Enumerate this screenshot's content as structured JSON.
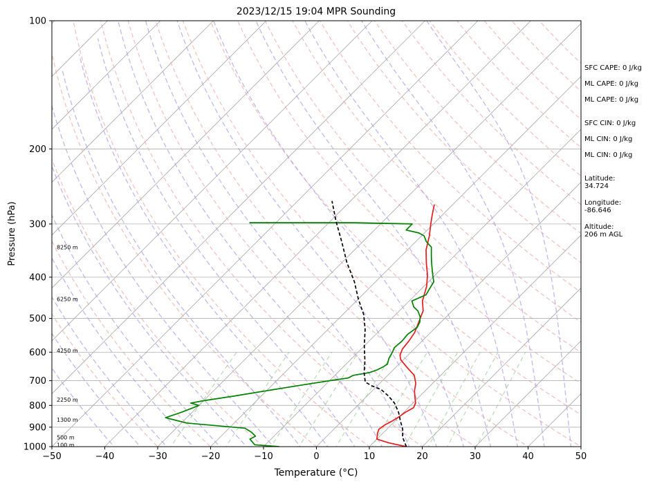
{
  "title": "2023/12/15 19:04 MPR Sounding",
  "chart_data": {
    "type": "line",
    "title": "2023/12/15 19:04 MPR Sounding",
    "xlabel": "Temperature (°C)",
    "ylabel": "Pressure (hPa)",
    "xlim": [
      -50,
      50
    ],
    "ylim": [
      1000,
      100
    ],
    "y_scale": "log",
    "x_ticks": [
      -50,
      -40,
      -30,
      -20,
      -10,
      0,
      10,
      20,
      30,
      40,
      50
    ],
    "y_ticks": [
      100,
      200,
      300,
      400,
      500,
      600,
      700,
      800,
      900,
      1000
    ],
    "grid": true,
    "background_lines": {
      "dry_adiabats": true,
      "moist_adiabats": true,
      "mixing_ratio": true,
      "isotherms": true
    },
    "height_labels": [
      {
        "label": "100 m",
        "pressure": 990
      },
      {
        "label": "500 m",
        "pressure": 950
      },
      {
        "label": "1300 m",
        "pressure": 865
      },
      {
        "label": "2250 m",
        "pressure": 775
      },
      {
        "label": "4250 m",
        "pressure": 595
      },
      {
        "label": "6250 m",
        "pressure": 450
      },
      {
        "label": "8250 m",
        "pressure": 340
      }
    ],
    "series": [
      {
        "color": "#e41a1c",
        "points": [
          [
            17,
            1000
          ],
          [
            13,
            980
          ],
          [
            10,
            960
          ],
          [
            9,
            930
          ],
          [
            8.5,
            910
          ],
          [
            8.8,
            890
          ],
          [
            9.5,
            870
          ],
          [
            10,
            850
          ],
          [
            10.3,
            830
          ],
          [
            11,
            810
          ],
          [
            10.5,
            790
          ],
          [
            9.5,
            770
          ],
          [
            8,
            740
          ],
          [
            6.8,
            710
          ],
          [
            5,
            680
          ],
          [
            2,
            650
          ],
          [
            -0.5,
            625
          ],
          [
            -1.5,
            610
          ],
          [
            -2.2,
            590
          ],
          [
            -2.5,
            565
          ],
          [
            -3,
            540
          ],
          [
            -4,
            515
          ],
          [
            -5.5,
            480
          ],
          [
            -7.5,
            455
          ],
          [
            -9.5,
            420
          ],
          [
            -11.5,
            395
          ],
          [
            -14,
            370
          ],
          [
            -16.5,
            345
          ],
          [
            -18.5,
            320
          ],
          [
            -20.5,
            300
          ],
          [
            -22,
            285
          ],
          [
            -23.5,
            270
          ]
        ]
      },
      {
        "color": "#008000",
        "points": [
          [
            -7,
            1000
          ],
          [
            -12,
            990
          ],
          [
            -14,
            960
          ],
          [
            -13.5,
            945
          ],
          [
            -15,
            925
          ],
          [
            -17,
            905
          ],
          [
            -29,
            880
          ],
          [
            -34,
            855
          ],
          [
            -32,
            830
          ],
          [
            -31,
            815
          ],
          [
            -30,
            800
          ],
          [
            -32,
            790
          ],
          [
            -30,
            780
          ],
          [
            -25,
            760
          ],
          [
            -19,
            735
          ],
          [
            -14,
            715
          ],
          [
            -10,
            700
          ],
          [
            -7,
            690
          ],
          [
            -6.5,
            680
          ],
          [
            -4,
            670
          ],
          [
            -3,
            660
          ],
          [
            -2.5,
            650
          ],
          [
            -2.2,
            640
          ],
          [
            -3,
            620
          ],
          [
            -3.5,
            600
          ],
          [
            -4,
            585
          ],
          [
            -3.8,
            565
          ],
          [
            -4,
            545
          ],
          [
            -3.5,
            525
          ],
          [
            -4,
            510
          ],
          [
            -5,
            495
          ],
          [
            -6.5,
            480
          ],
          [
            -8,
            470
          ],
          [
            -9.5,
            455
          ],
          [
            -8,
            440
          ],
          [
            -8.5,
            425
          ],
          [
            -9,
            410
          ],
          [
            -10,
            400
          ],
          [
            -11,
            390
          ],
          [
            -12,
            380
          ],
          [
            -13,
            370
          ],
          [
            -14,
            360
          ],
          [
            -15,
            350
          ],
          [
            -16,
            340
          ],
          [
            -17,
            335
          ],
          [
            -18,
            330
          ],
          [
            -19.5,
            320
          ],
          [
            -21,
            315
          ],
          [
            -24,
            310
          ],
          [
            -24,
            300
          ],
          [
            -35,
            298
          ],
          [
            -55,
            298
          ]
        ]
      },
      {
        "color": "#000000",
        "dashed": true,
        "points": [
          [
            17,
            1000
          ],
          [
            16,
            980
          ],
          [
            14.5,
            950
          ],
          [
            13,
            910
          ],
          [
            11,
            870
          ],
          [
            9,
            830
          ],
          [
            6.5,
            790
          ],
          [
            4,
            760
          ],
          [
            1.5,
            735
          ],
          [
            -1,
            720
          ],
          [
            -3,
            705
          ],
          [
            -5,
            670
          ],
          [
            -7,
            630
          ],
          [
            -10,
            580
          ],
          [
            -13,
            530
          ],
          [
            -16,
            490
          ],
          [
            -20,
            450
          ],
          [
            -24,
            410
          ],
          [
            -29,
            370
          ],
          [
            -34,
            330
          ],
          [
            -39,
            295
          ],
          [
            -43.5,
            265
          ]
        ]
      }
    ]
  },
  "info_panel": {
    "sfc_cape": "SFC CAPE: 0 J/kg",
    "ml_cape_1": "ML CAPE: 0 J/kg",
    "ml_cape_2": "ML CAPE: 0 J/kg",
    "sfc_cin": "SFC CIN: 0 J/kg",
    "ml_cin_1": "ML CIN: 0 J/kg",
    "ml_cin_2": "ML CIN: 0 J/kg",
    "latitude_label": "Latitude:",
    "latitude_value": "34.724",
    "longitude_label": "Longitude:",
    "longitude_value": "-86.646",
    "altitude_label": "Altitude:",
    "altitude_value": "206 m AGL"
  }
}
